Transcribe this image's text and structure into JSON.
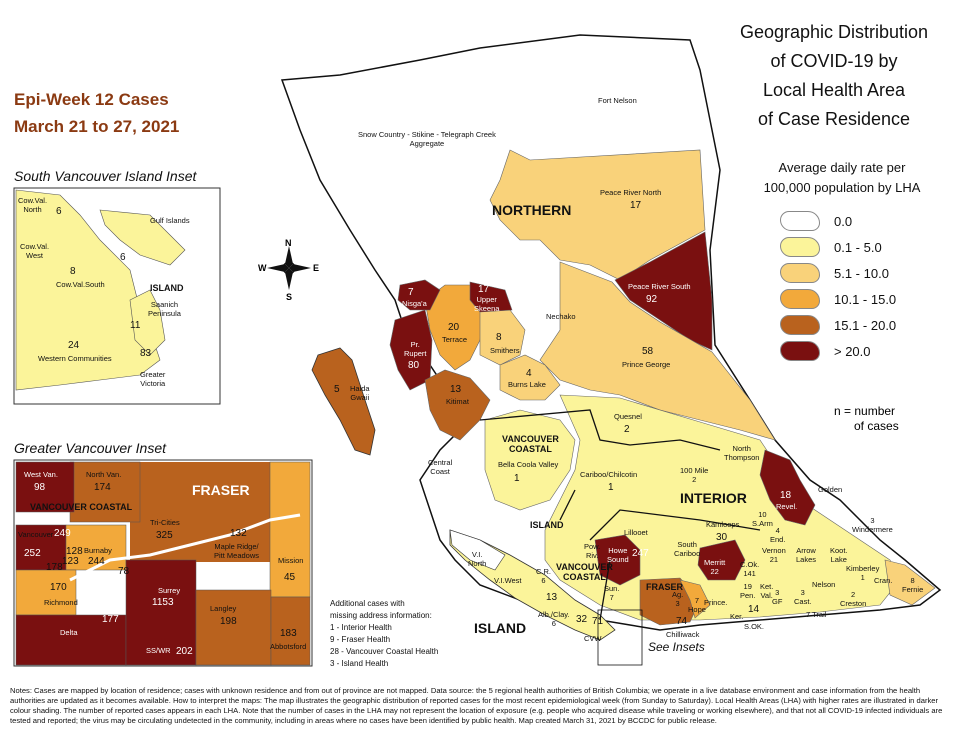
{
  "header": {
    "epi_week": "Epi-Week 12 Cases",
    "date_range": "March 21 to 27, 2021"
  },
  "title": [
    "Geographic Distribution",
    "of COVID-19 by",
    "Local Health Area",
    "of Case Residence"
  ],
  "legend": {
    "title": [
      "Average daily rate per",
      "100,000 population by LHA"
    ],
    "items": [
      {
        "label": "0.0",
        "color": "#ffffff"
      },
      {
        "label": "0.1 - 5.0",
        "color": "#fbf49a"
      },
      {
        "label": "5.1 - 10.0",
        "color": "#f9d27a"
      },
      {
        "label": "10.1 - 15.0",
        "color": "#f2a93b"
      },
      {
        "label": "15.1 - 20.0",
        "color": "#b9621e"
      },
      {
        "label": "> 20.0",
        "color": "#7a1010"
      }
    ],
    "n_note": [
      "n = number",
      "of cases"
    ]
  },
  "compass": {
    "n": "N",
    "s": "S",
    "e": "E",
    "w": "W"
  },
  "insets": {
    "svi_title": "South Vancouver Island Inset",
    "gv_title": "Greater Vancouver Inset",
    "see_insets": "See Insets"
  },
  "regions": {
    "northern": "NORTHERN",
    "interior": "INTERIOR",
    "island": "ISLAND",
    "island_inset": "ISLAND",
    "fraser_inset": "FRASER",
    "vc_main": [
      "VANCOUVER",
      "COASTAL"
    ],
    "vc_inset": "VANCOUVER COASTAL",
    "vc_small": [
      "VANCOUVER",
      "COASTAL"
    ],
    "fraser_small": "FRASER",
    "island_small": "ISLAND"
  },
  "lha": {
    "fort_nelson": "Fort Nelson",
    "snow_country": [
      "Snow Country - Stikine - Telegraph Creek",
      "Aggregate"
    ],
    "peace_north": "Peace River North",
    "peace_north_n": "17",
    "peace_south": "Peace River South",
    "peace_south_n": "92",
    "nechako": "Nechako",
    "prince_george": "Prince George",
    "prince_george_n": "58",
    "nisgaa_n": "7",
    "nisgaa": "Nisga'a",
    "upper_skeena_n": "17",
    "upper_skeena": [
      "Upper",
      "Skeena"
    ],
    "terrace_n": "20",
    "terrace": "Terrace",
    "smithers_n": "8",
    "smithers": "Smithers",
    "burns_lake_n": "4",
    "burns_lake": "Burns Lake",
    "pr_rupert": [
      "Pr.",
      "Rupert"
    ],
    "pr_rupert_n": "80",
    "haida_gwaii": [
      "Haida",
      "Gwaii"
    ],
    "haida_gwaii_n": "5",
    "kitimat_n": "13",
    "kitimat": "Kitimat",
    "quesnel": "Quesnel",
    "quesnel_n": "2",
    "bella_coola": "Bella Coola Valley",
    "bella_coola_n": "1",
    "central_coast": [
      "Central",
      "Coast"
    ],
    "cariboo": "Cariboo/Chilcotin",
    "cariboo_n": "1",
    "mile100": [
      "100 Mile",
      "2"
    ],
    "north_thompson": [
      "North",
      "Thompson"
    ],
    "golden": "Golden",
    "revelstoke_n": "18",
    "revelstoke": "Revel.",
    "lillooet": "Lillooet",
    "kamloops": "Kamloops",
    "kamloops_n": "30",
    "s_arm": [
      "10",
      "S.Arm"
    ],
    "enderby": [
      "4",
      "End."
    ],
    "vernon": [
      "Vernon",
      "21"
    ],
    "arrow_lakes": [
      "Arrow",
      "Lakes"
    ],
    "kootenay_lake": [
      "Koot.",
      "Lake"
    ],
    "windermere": [
      "3",
      "Windermere"
    ],
    "kimberley": [
      "Kimberley",
      "1"
    ],
    "cranbrook": "Cran.",
    "fernie": [
      "8",
      "Fernie"
    ],
    "nelson": "Nelson",
    "creston": [
      "2",
      "Creston"
    ],
    "castlegar": [
      "3",
      "Cast."
    ],
    "grand_forks": [
      "3",
      "GF"
    ],
    "trail": [
      "7",
      "Trail"
    ],
    "kettle": [
      "Ket.",
      "Val."
    ],
    "penticton": [
      "19",
      "Pen."
    ],
    "summerland": "14",
    "s_ok": "S.OK.",
    "keremeos": "Ker.",
    "princeton": "Prince.",
    "merritt": [
      "Merritt",
      "22"
    ],
    "central_ok": [
      "C.Ok.",
      "141"
    ],
    "south_cariboo": [
      "South",
      "Cariboo"
    ],
    "howe_sound": [
      "Howe",
      "Sound"
    ],
    "howe_sound_n": "247",
    "powell_river": [
      "Pow.",
      "Riv."
    ],
    "vi_north": [
      "V.I.",
      "North"
    ],
    "vi_west": "V.I.West",
    "cr": [
      "C.R.",
      "6"
    ],
    "vi_13": "13",
    "alberni": [
      "Alb./Clay.",
      "6"
    ],
    "sun": [
      "Sun.",
      "7"
    ],
    "n_32": "32",
    "n_71": "71",
    "agassiz": [
      "Ag.",
      "3"
    ],
    "hope": [
      "7",
      "Hope"
    ],
    "n_74": "74",
    "chilliwack": "Chilliwack",
    "cvw": "CVW"
  },
  "svi": {
    "cowval_north": [
      "Cow.Val.",
      "North"
    ],
    "cowval_north_n": "6",
    "gulf_islands": "Gulf Islands",
    "gulf_n": "6",
    "cowval_west": [
      "Cow.Val.",
      "West"
    ],
    "cowval_south": "Cow.Val.South",
    "cowval_south_n": "8",
    "saanich": [
      "Saanich",
      "Peninsula"
    ],
    "saanich_n": "11",
    "greater_victoria": [
      "Greater",
      "Victoria"
    ],
    "gv_n": "83",
    "western": "Western Communities",
    "western_n": "24"
  },
  "gv": {
    "west_van": "West Van.",
    "west_van_n": "98",
    "north_van": "North Van.",
    "north_van_n": "174",
    "tri_cities": "Tri-Cities",
    "tri_cities_n": "325",
    "maple_ridge": [
      "Maple Ridge/",
      "Pitt Meadows"
    ],
    "maple_ridge_n": "132",
    "mission": "Mission",
    "mission_n": "45",
    "vancouver": "Vancouver",
    "vancouver_n1": "249",
    "vancouver_n2": "252",
    "n_128": "128",
    "n_123": "123",
    "n_178": "178",
    "burnaby": "Burnaby",
    "burnaby_n": "244",
    "n_78": "78",
    "richmond": "Richmond",
    "richmond_n": "170",
    "delta": "Delta",
    "delta_n": "177",
    "surrey": "Surrey",
    "surrey_n": "1153",
    "sswr": "SS/WR",
    "sswr_n": "202",
    "langley": "Langley",
    "langley_n": "198",
    "abbotsford": "Abbotsford",
    "abbotsford_n": "183"
  },
  "additional": [
    "Additional cases with",
    "missing address information:",
    "1 - Interior Health",
    "9 - Fraser Health",
    "28 - Vancouver Coastal Health",
    "3 - Island Health"
  ],
  "notes": "Notes: Cases are mapped by location of residence; cases with unknown residence and from out of province are not mapped. Data source: the 5 regional health authorities of British Columbia; we operate in a live database environment and case information from the health authorities are updated as it becomes available. How to interpret the maps: The map illustrates the geographic distribution of reported cases for the most recent epidemiological week (from Sunday to Saturday). Local Health Areas (LHA) with higher rates are illustrated in darker colour shading. The number of reported cases appears in each LHA. Note that the number of cases in the LHA may not represent the location of exposure (e.g. people who acquired disease while traveling or working elsewhere), and that not all COVID-19 infected individuals are tested and reported; the virus may be circulating undetected in the community, including in areas where no cases have been identified by public health. Map created March 31, 2021 by BCCDC for public release."
}
